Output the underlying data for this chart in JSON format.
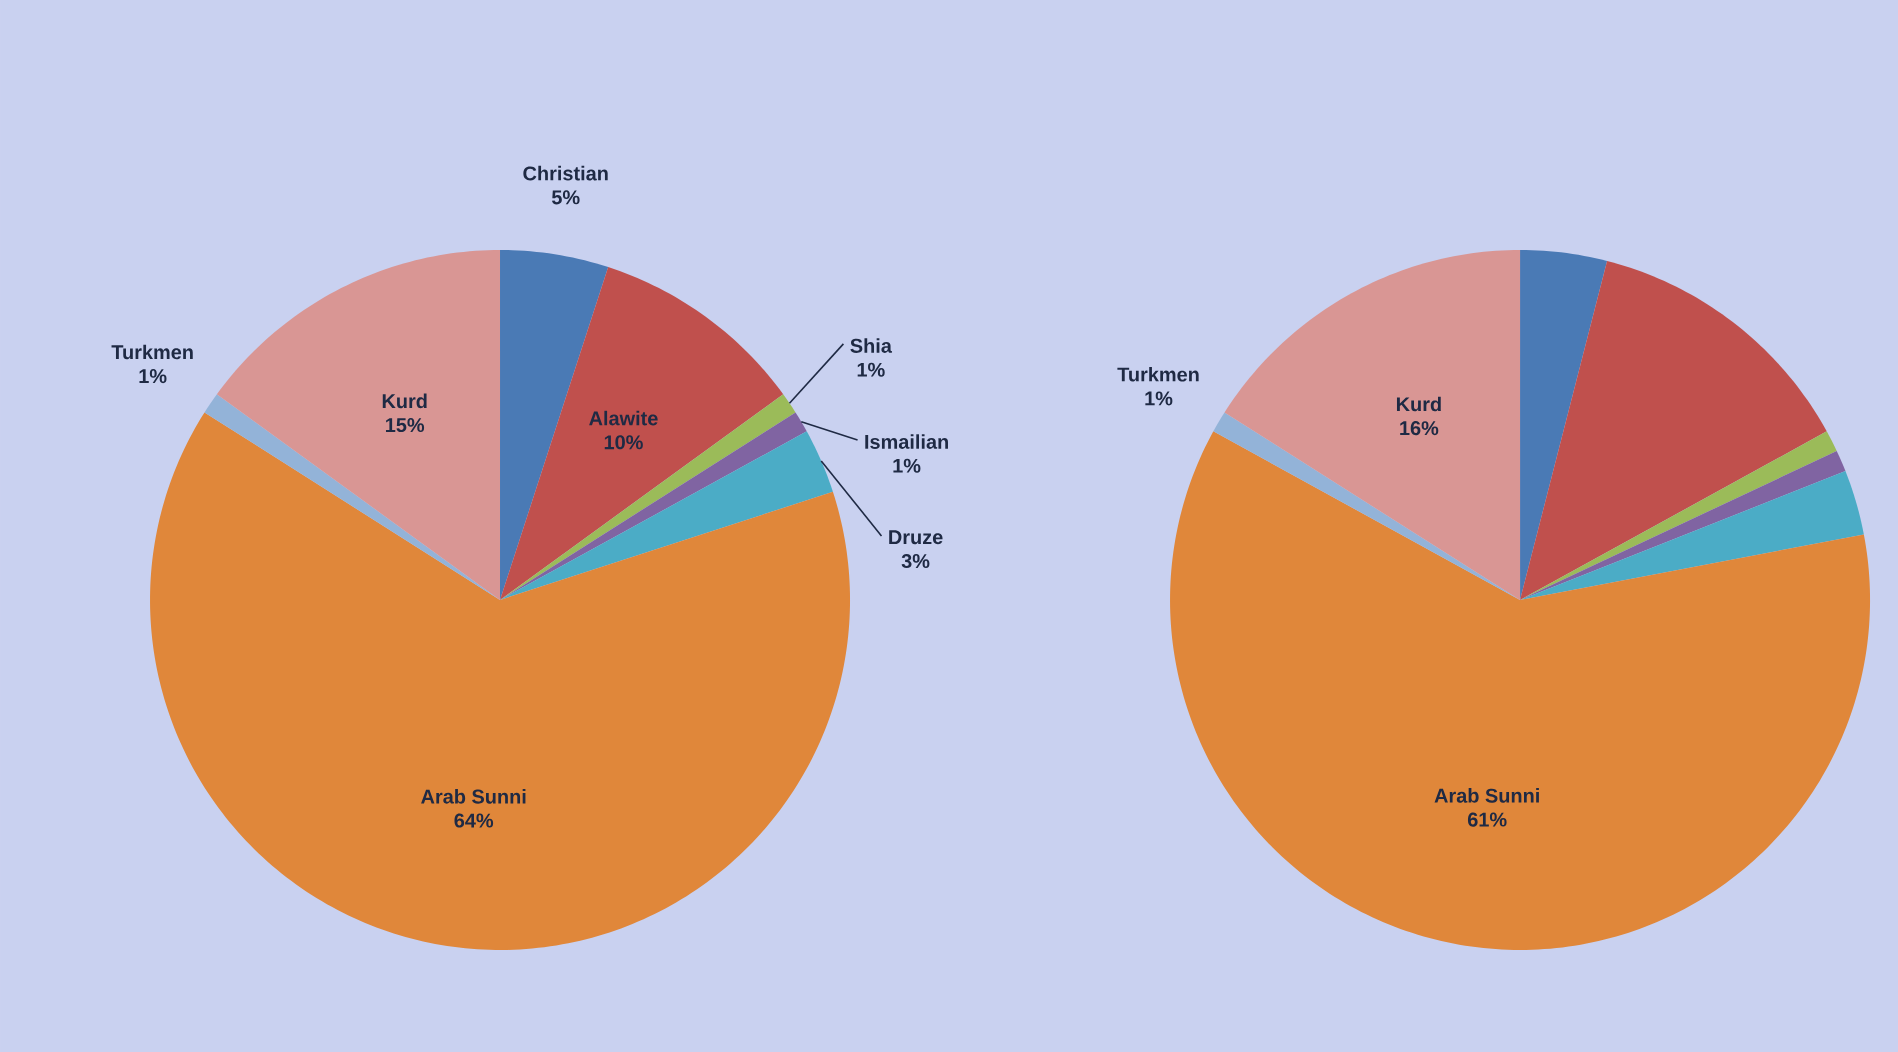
{
  "chart_data": [
    {
      "type": "pie",
      "categories": [
        "Christian",
        "Alawite",
        "Shia",
        "Ismailian",
        "Druze",
        "Arab Sunni",
        "Turkmen",
        "Kurd"
      ],
      "values": [
        5,
        10,
        1,
        1,
        3,
        64,
        1,
        15
      ],
      "value_labels": [
        "5%",
        "10%",
        "1%",
        "1%",
        "3%",
        "64%",
        "1%",
        "15%"
      ],
      "colors": [
        "#4a7ab5",
        "#c0504d",
        "#9bbb59",
        "#8064a2",
        "#4bacc6",
        "#e0873a",
        "#93b3d8",
        "#d99694"
      ]
    },
    {
      "type": "pie",
      "categories": [
        null,
        null,
        null,
        null,
        null,
        "Arab Sunni",
        "Turkmen",
        "Kurd"
      ],
      "values": [
        4,
        13,
        1,
        1,
        3,
        61,
        1,
        16
      ],
      "value_labels": [
        null,
        null,
        null,
        null,
        null,
        "61%",
        "1%",
        "16%"
      ],
      "colors": [
        "#4a7ab5",
        "#c0504d",
        "#9bbb59",
        "#8064a2",
        "#4bacc6",
        "#e0873a",
        "#93b3d8",
        "#d99694"
      ]
    }
  ]
}
